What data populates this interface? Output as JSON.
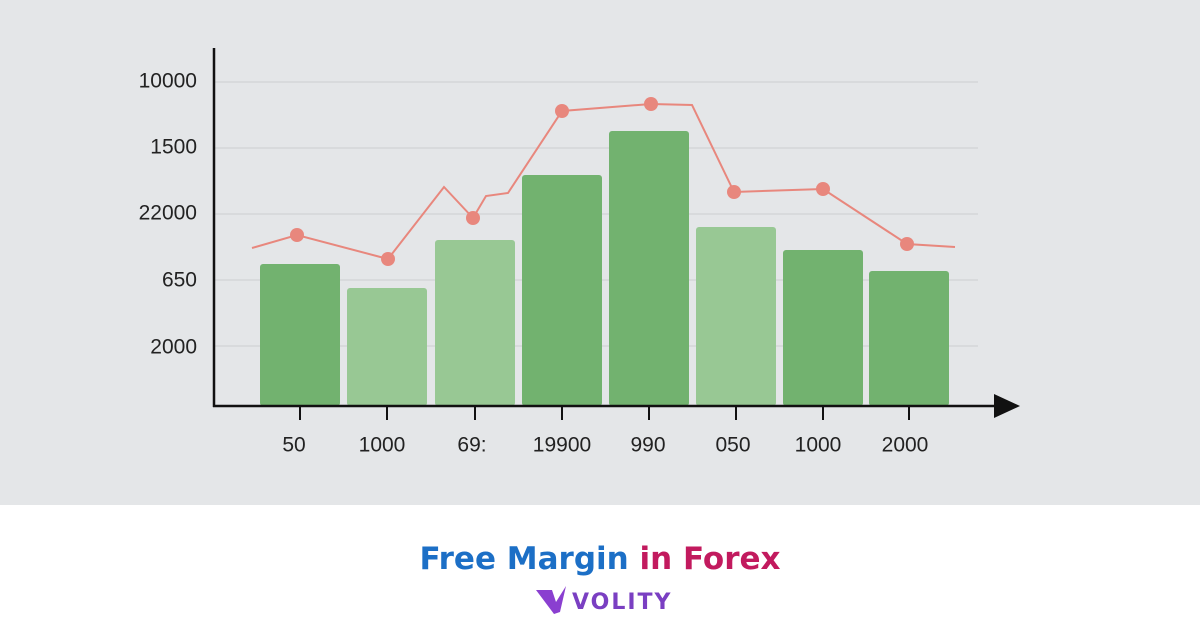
{
  "chart_graphic": {
    "y_axis_labels": [
      "10000",
      "1500",
      "22000",
      "650",
      "2000"
    ],
    "x_axis_labels": [
      "50",
      "1000",
      "69:",
      "19900",
      "990",
      "050",
      "1000",
      "2000"
    ]
  },
  "title": {
    "part1": "Free Margin",
    "part2": "in Forex"
  },
  "brand": "VOLITY"
}
